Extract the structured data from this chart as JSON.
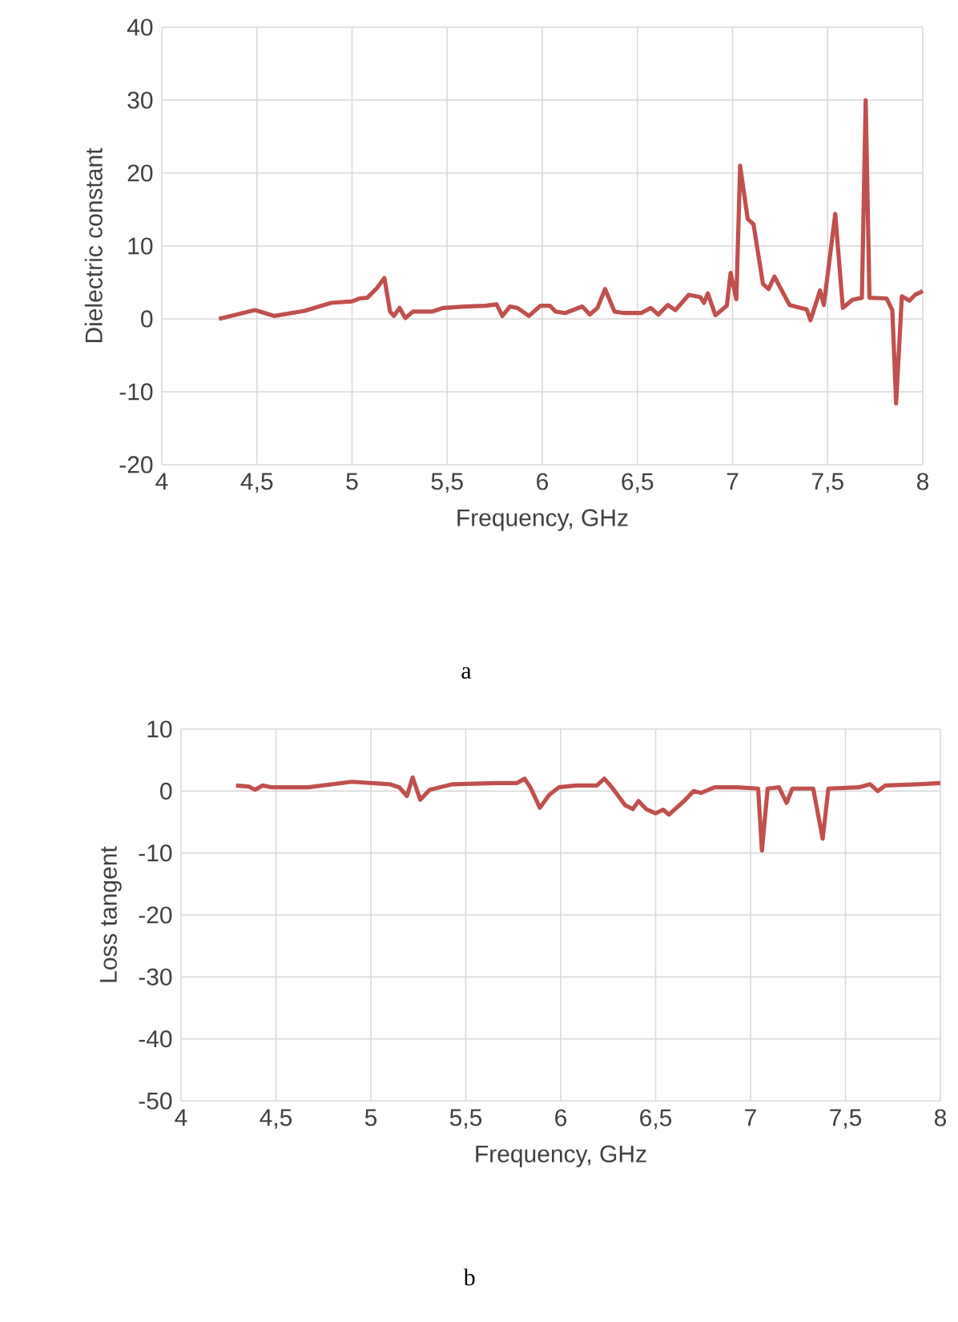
{
  "chart_data": [
    {
      "type": "line",
      "xlabel": "Frequency, GHz",
      "ylabel": "Dielectric constant",
      "annotations": [
        "a"
      ],
      "grid": true,
      "color": "#c0504d",
      "xlim": [
        4,
        8
      ],
      "xticks": [
        4,
        {
          "value": 4.5,
          "label": "4,5"
        },
        5,
        {
          "value": 5.5,
          "label": "5,5"
        },
        6,
        {
          "value": 6.5,
          "label": "6,5"
        },
        7,
        {
          "value": 7.5,
          "label": "7,5"
        },
        8
      ],
      "ylim": [
        -20,
        40
      ],
      "yticks": [
        -20,
        -10,
        0,
        10,
        20,
        30,
        40
      ],
      "x": [
        4.3,
        4.49,
        4.59,
        4.75,
        4.89,
        5.0,
        5.04,
        5.08,
        5.13,
        5.17,
        5.2,
        5.22,
        5.25,
        5.28,
        5.32,
        5.42,
        5.48,
        5.59,
        5.7,
        5.76,
        5.79,
        5.83,
        5.87,
        5.93,
        5.99,
        6.04,
        6.07,
        6.12,
        6.21,
        6.25,
        6.29,
        6.33,
        6.38,
        6.43,
        6.52,
        6.57,
        6.61,
        6.66,
        6.7,
        6.77,
        6.83,
        6.85,
        6.87,
        6.91,
        6.97,
        6.99,
        7.02,
        7.04,
        7.08,
        7.11,
        7.16,
        7.19,
        7.22,
        7.3,
        7.39,
        7.41,
        7.46,
        7.48,
        7.54,
        7.58,
        7.63,
        7.68,
        7.7,
        7.72,
        7.81,
        7.84,
        7.86,
        7.89,
        7.93,
        7.96,
        8.0
      ],
      "values": [
        0,
        1.2,
        0.4,
        1.1,
        2.2,
        2.4,
        2.8,
        2.9,
        4.2,
        5.6,
        1.0,
        0.4,
        1.5,
        0.1,
        1.0,
        1.0,
        1.5,
        1.7,
        1.8,
        2.0,
        0.4,
        1.7,
        1.5,
        0.4,
        1.8,
        1.8,
        1.0,
        0.8,
        1.7,
        0.6,
        1.5,
        4.1,
        1.0,
        0.8,
        0.8,
        1.5,
        0.6,
        1.9,
        1.2,
        3.3,
        3.0,
        2.2,
        3.5,
        0.5,
        1.8,
        6.3,
        2.7,
        21.0,
        13.7,
        13.0,
        4.8,
        4.1,
        5.8,
        1.9,
        1.3,
        -0.2,
        3.9,
        1.9,
        14.4,
        1.5,
        2.6,
        2.9,
        30.0,
        2.9,
        2.8,
        1.2,
        -11.6,
        3.1,
        2.5,
        3.3,
        3.8
      ]
    },
    {
      "type": "line",
      "xlabel": "Frequency, GHz",
      "ylabel": "Loss tangent",
      "annotations": [
        "b"
      ],
      "grid": true,
      "color": "#c0504d",
      "xlim": [
        4,
        8
      ],
      "xticks": [
        4,
        {
          "value": 4.5,
          "label": "4,5"
        },
        5,
        {
          "value": 5.5,
          "label": "5,5"
        },
        6,
        {
          "value": 6.5,
          "label": "6,5"
        },
        7,
        {
          "value": 7.5,
          "label": "7,5"
        },
        8
      ],
      "ylim": [
        -50,
        10
      ],
      "yticks": [
        -50,
        -40,
        -30,
        -20,
        -10,
        0,
        10
      ],
      "x": [
        4.29,
        4.36,
        4.39,
        4.43,
        4.48,
        4.67,
        4.9,
        5.1,
        5.15,
        5.19,
        5.22,
        5.26,
        5.31,
        5.43,
        5.66,
        5.77,
        5.81,
        5.84,
        5.89,
        5.94,
        5.99,
        6.08,
        6.19,
        6.23,
        6.27,
        6.34,
        6.38,
        6.41,
        6.45,
        6.5,
        6.54,
        6.57,
        6.65,
        6.7,
        6.74,
        6.81,
        6.93,
        7.04,
        7.06,
        7.09,
        7.15,
        7.19,
        7.22,
        7.33,
        7.38,
        7.41,
        7.57,
        7.63,
        7.67,
        7.71,
        7.88,
        8.0
      ],
      "values": [
        0.9,
        0.7,
        0.2,
        0.9,
        0.6,
        0.6,
        1.5,
        1.1,
        0.6,
        -0.8,
        2.2,
        -1.4,
        0.2,
        1.1,
        1.3,
        1.3,
        2.0,
        0.6,
        -2.7,
        -0.6,
        0.6,
        0.9,
        0.9,
        2.0,
        0.6,
        -2.3,
        -2.9,
        -1.6,
        -2.9,
        -3.6,
        -3.0,
        -3.8,
        -1.6,
        0,
        -0.3,
        0.6,
        0.6,
        0.4,
        -9.6,
        0.4,
        0.6,
        -1.9,
        0.4,
        0.4,
        -7.7,
        0.4,
        0.6,
        1.1,
        0,
        0.9,
        1.1,
        1.3
      ]
    }
  ]
}
